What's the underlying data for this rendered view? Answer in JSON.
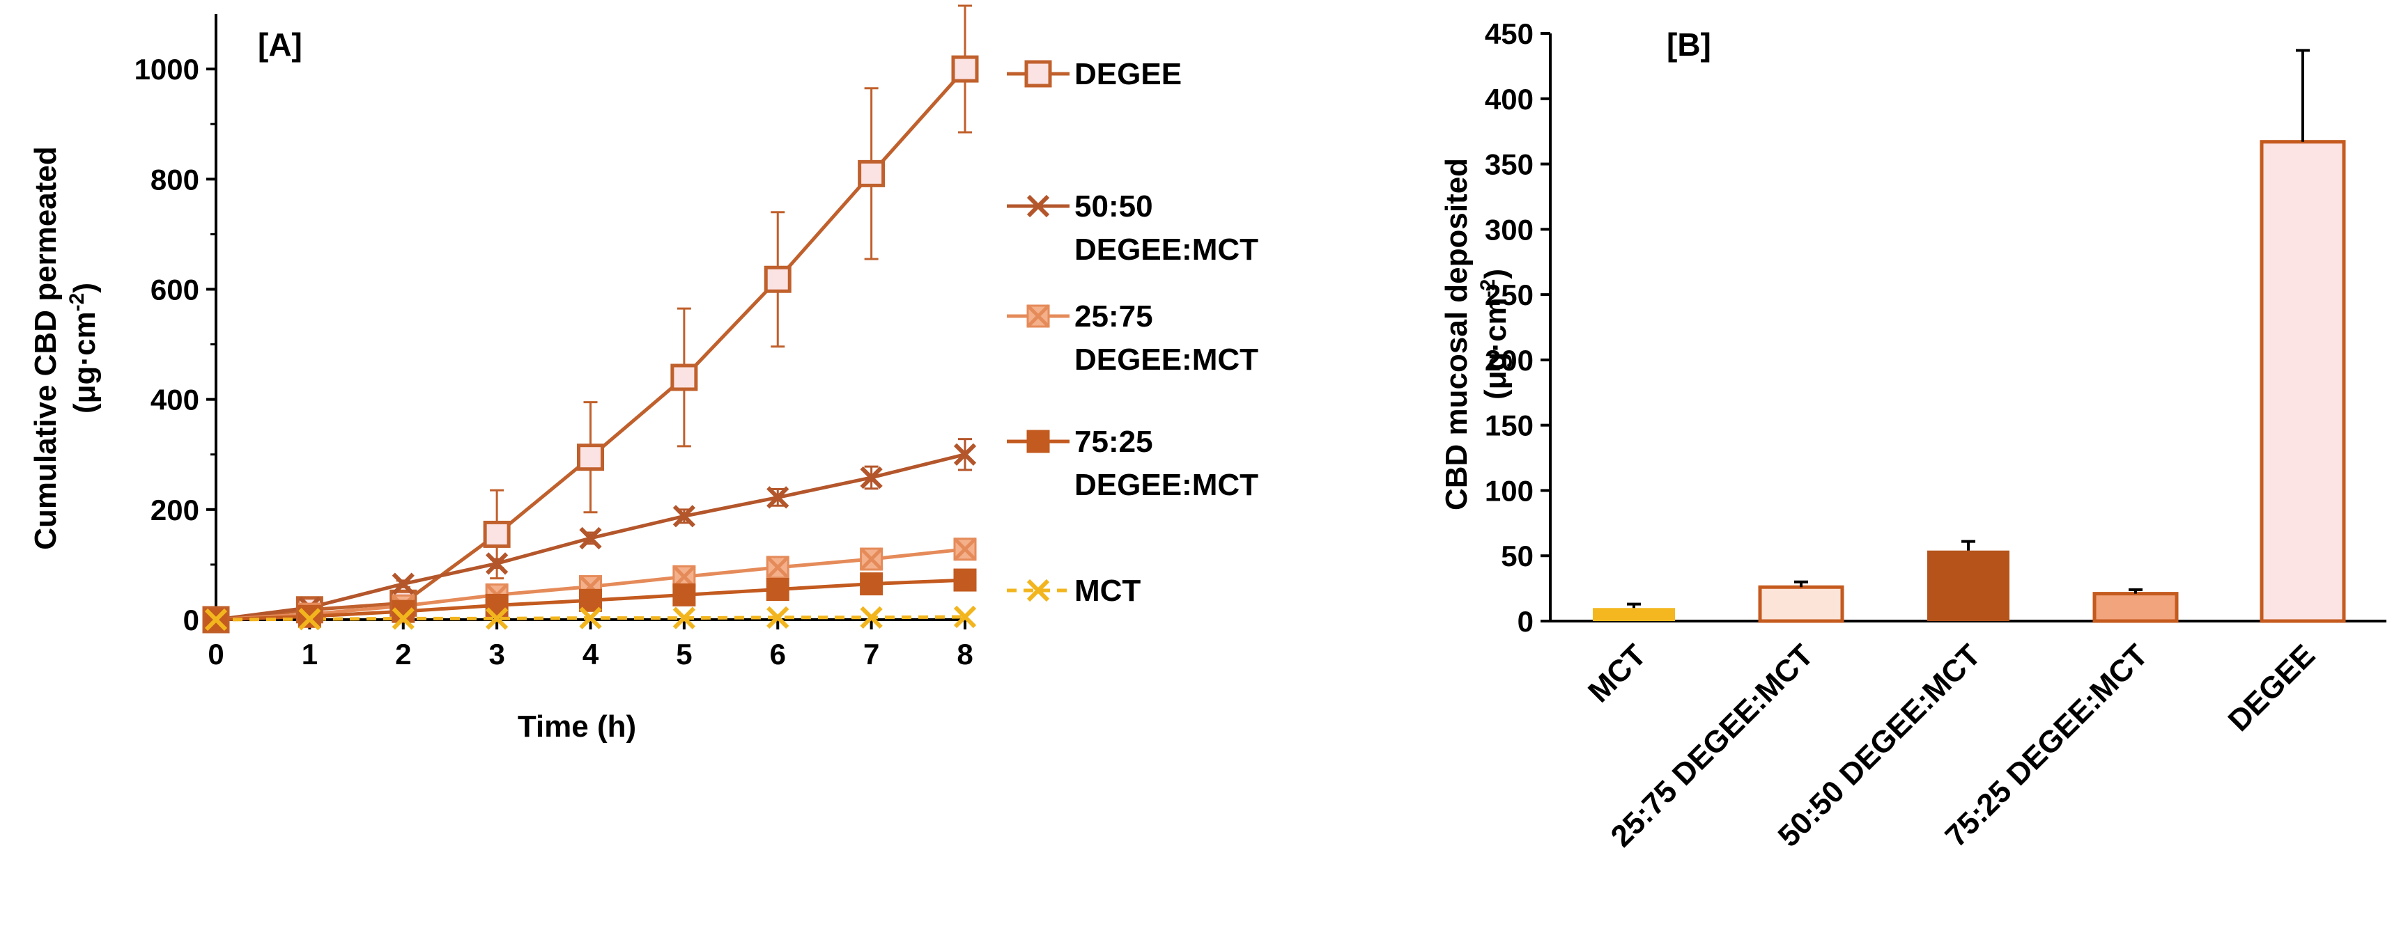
{
  "chart_data": [
    {
      "type": "line",
      "panel_label": "[A]",
      "xlabel": "Time (h)",
      "ylabel_line1": "Cumulative CBD permeated",
      "ylabel_line2_prefix": "(μg·cm",
      "ylabel_line2_sup": "-2",
      "ylabel_line2_suffix": ")",
      "xlim": [
        0,
        8
      ],
      "ylim": [
        0,
        1100
      ],
      "x_ticks": [
        0,
        1,
        2,
        3,
        4,
        5,
        6,
        7,
        8
      ],
      "y_ticks": [
        0,
        200,
        400,
        600,
        800,
        1000
      ],
      "x": [
        0,
        1,
        2,
        3,
        4,
        5,
        6,
        7,
        8
      ],
      "legend_position": "right",
      "series": [
        {
          "name": "DEGEE",
          "name_lines": [
            "DEGEE"
          ],
          "marker": "square",
          "line_color": "#C0602C",
          "marker_fill": "#FBE3E3",
          "dashed": false,
          "values": [
            0,
            18,
            30,
            155,
            295,
            440,
            618,
            810,
            1000
          ],
          "errors": [
            0,
            5,
            8,
            80,
            100,
            125,
            122,
            155,
            115
          ]
        },
        {
          "name": "50:50 DEGEE:MCT",
          "name_lines": [
            "50:50",
            "DEGEE:MCT"
          ],
          "marker": "x",
          "line_color": "#B4562B",
          "marker_fill": "none",
          "dashed": false,
          "values": [
            0,
            22,
            65,
            102,
            148,
            188,
            222,
            258,
            300
          ],
          "errors": [
            0,
            3,
            6,
            8,
            10,
            12,
            15,
            20,
            28
          ]
        },
        {
          "name": "25:75 DEGEE:MCT",
          "name_lines": [
            "25:75",
            "DEGEE:MCT"
          ],
          "marker": "xbox",
          "line_color": "#E58B5A",
          "marker_fill": "#F4B08A",
          "dashed": false,
          "values": [
            0,
            10,
            25,
            45,
            60,
            78,
            95,
            110,
            128
          ],
          "errors": [
            0,
            2,
            3,
            5,
            6,
            7,
            8,
            10,
            12
          ]
        },
        {
          "name": "75:25 DEGEE:MCT",
          "name_lines": [
            "75:25",
            "DEGEE:MCT"
          ],
          "marker": "square",
          "line_color": "#C35A1F",
          "marker_fill": "#C35A1F",
          "dashed": false,
          "values": [
            0,
            6,
            15,
            26,
            35,
            45,
            55,
            65,
            72
          ],
          "errors": [
            0,
            1,
            2,
            3,
            4,
            5,
            5,
            6,
            7
          ]
        },
        {
          "name": "MCT",
          "name_lines": [
            "MCT"
          ],
          "marker": "x",
          "line_color": "#F2B51E",
          "marker_fill": "none",
          "dashed": true,
          "values": [
            0,
            1,
            2,
            2,
            3,
            3,
            4,
            4,
            5
          ],
          "errors": [
            0,
            0,
            0,
            0,
            0,
            0,
            0,
            0,
            0
          ]
        }
      ]
    },
    {
      "type": "bar",
      "panel_label": "[B]",
      "ylabel_prefix": "CBD mucosal deposited",
      "ylabel_line2_prefix": "(μg·cm",
      "ylabel_line2_sup": "-2",
      "ylabel_line2_suffix": ")",
      "ylim": [
        0,
        450
      ],
      "y_ticks": [
        0,
        50,
        100,
        150,
        200,
        250,
        300,
        350,
        400,
        450
      ],
      "categories": [
        "MCT",
        "25:75 DEGEE:MCT",
        "50:50 DEGEE:MCT",
        "75:25 DEGEE:MCT",
        "DEGEE"
      ],
      "values": [
        10,
        26,
        54,
        21,
        367
      ],
      "errors": [
        3,
        4,
        7,
        3,
        70
      ],
      "fills": [
        "#F4B71F",
        "#FCE4D8",
        "#B5531A",
        "#F2A47C",
        "#FCE4E4"
      ],
      "strokes": [
        "#F4B71F",
        "#C55A1E",
        "#B5531A",
        "#C55A1E",
        "#C55A1E"
      ]
    }
  ]
}
